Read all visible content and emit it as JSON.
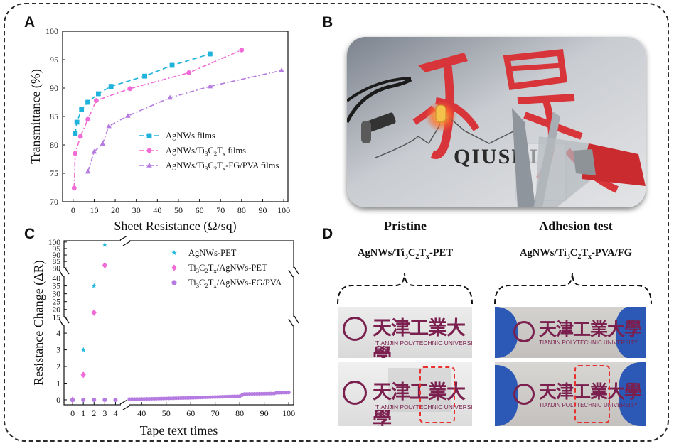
{
  "panels": {
    "a": "A",
    "b": "B",
    "c": "C",
    "d": "D"
  },
  "chart_data": [
    {
      "type": "line",
      "panel": "A",
      "xlabel": "Sheet Resistance (Ω/sq)",
      "ylabel": "Transmittance (%)",
      "xlim": [
        -5,
        102
      ],
      "ylim": [
        70,
        100
      ],
      "xticks": [
        "0",
        "10",
        "20",
        "30",
        "40",
        "50",
        "60",
        "70",
        "80",
        "90",
        "100"
      ],
      "yticks": [
        "70",
        "75",
        "80",
        "85",
        "90",
        "95",
        "100"
      ],
      "legend_position": "center-right",
      "series": [
        {
          "name": "AgNWs films",
          "marker": "square",
          "color": "#1fb3dc",
          "x": [
            1,
            1.8,
            4,
            7,
            12,
            18,
            34,
            47,
            65
          ],
          "y": [
            82,
            84,
            86.2,
            87.5,
            89,
            90.3,
            92.1,
            94,
            96
          ]
        },
        {
          "name": "AgNWs/Ti3C2Tx films",
          "marker": "circle",
          "color": "#f06bd6",
          "x": [
            0.5,
            1,
            3.5,
            7,
            11,
            27,
            55,
            80
          ],
          "y": [
            72.4,
            78.5,
            81.5,
            84.5,
            87.8,
            89.9,
            92.7,
            96.7
          ]
        },
        {
          "name": "AgNWs/Ti3C2Tx-FG/PVA films",
          "marker": "triangle",
          "color": "#b57be0",
          "x": [
            7,
            10,
            14,
            17,
            26,
            46,
            65,
            99
          ],
          "y": [
            75.3,
            78.8,
            80.2,
            83.3,
            85.1,
            88.3,
            90.3,
            93.1
          ]
        }
      ]
    },
    {
      "type": "scatter",
      "panel": "C",
      "xlabel": "Tape text  times",
      "ylabel": "Resistance Change (ΔR)",
      "axis_breaks": {
        "x": [
          4.5,
          35
        ],
        "y": [
          [
            4.5,
            15
          ],
          [
            45,
            80
          ]
        ]
      },
      "xticks": [
        "0",
        "1",
        "2",
        "3",
        "4",
        "40",
        "50",
        "60",
        "70",
        "80",
        "90",
        "100"
      ],
      "yticks": [
        "0",
        "1",
        "2",
        "3",
        "4",
        "15",
        "20",
        "25",
        "30",
        "35",
        "40",
        "80",
        "85",
        "90",
        "95",
        "100"
      ],
      "legend_position": "top-right",
      "series": [
        {
          "name": "AgNWs-PET",
          "marker": "star",
          "color": "#22b8e0",
          "x": [
            0,
            1,
            2,
            3
          ],
          "y": [
            0,
            3,
            35,
            98
          ]
        },
        {
          "name": "Ti3C2Tx/AgNWs-PET",
          "marker": "diamond",
          "color": "#f06bd6",
          "x": [
            0,
            1,
            2,
            3
          ],
          "y": [
            0,
            1.5,
            18,
            82
          ]
        },
        {
          "name": "Ti3C2Tx/AgNWs-FG/PVA",
          "marker": "circle",
          "color": "#b57be0",
          "x_range": [
            0,
            100
          ],
          "y_profile": [
            [
              0,
              0
            ],
            [
              40,
              0.05
            ],
            [
              60,
              0.12
            ],
            [
              80,
              0.22
            ],
            [
              82,
              0.35
            ],
            [
              94,
              0.38
            ],
            [
              95,
              0.42
            ],
            [
              100,
              0.44
            ]
          ]
        }
      ]
    }
  ],
  "photo_b": {
    "sign_text": "QIUSHI"
  },
  "panel_d": {
    "col1_title": "Pristine",
    "col2_title": "Adhesion test",
    "col1_sample": "AgNWs/Ti3C2Tx-PET",
    "col2_sample": "AgNWs/Ti3C2Tx-PVA/FG",
    "logo_chars": "天津工業大學",
    "logo_sub": "TIANJIN POLYTECHNIC UNIVERSITY"
  },
  "colors": {
    "maroon": "#7a1f4e",
    "red_dashed": "#e8302e",
    "glove": "#2c59b5"
  }
}
